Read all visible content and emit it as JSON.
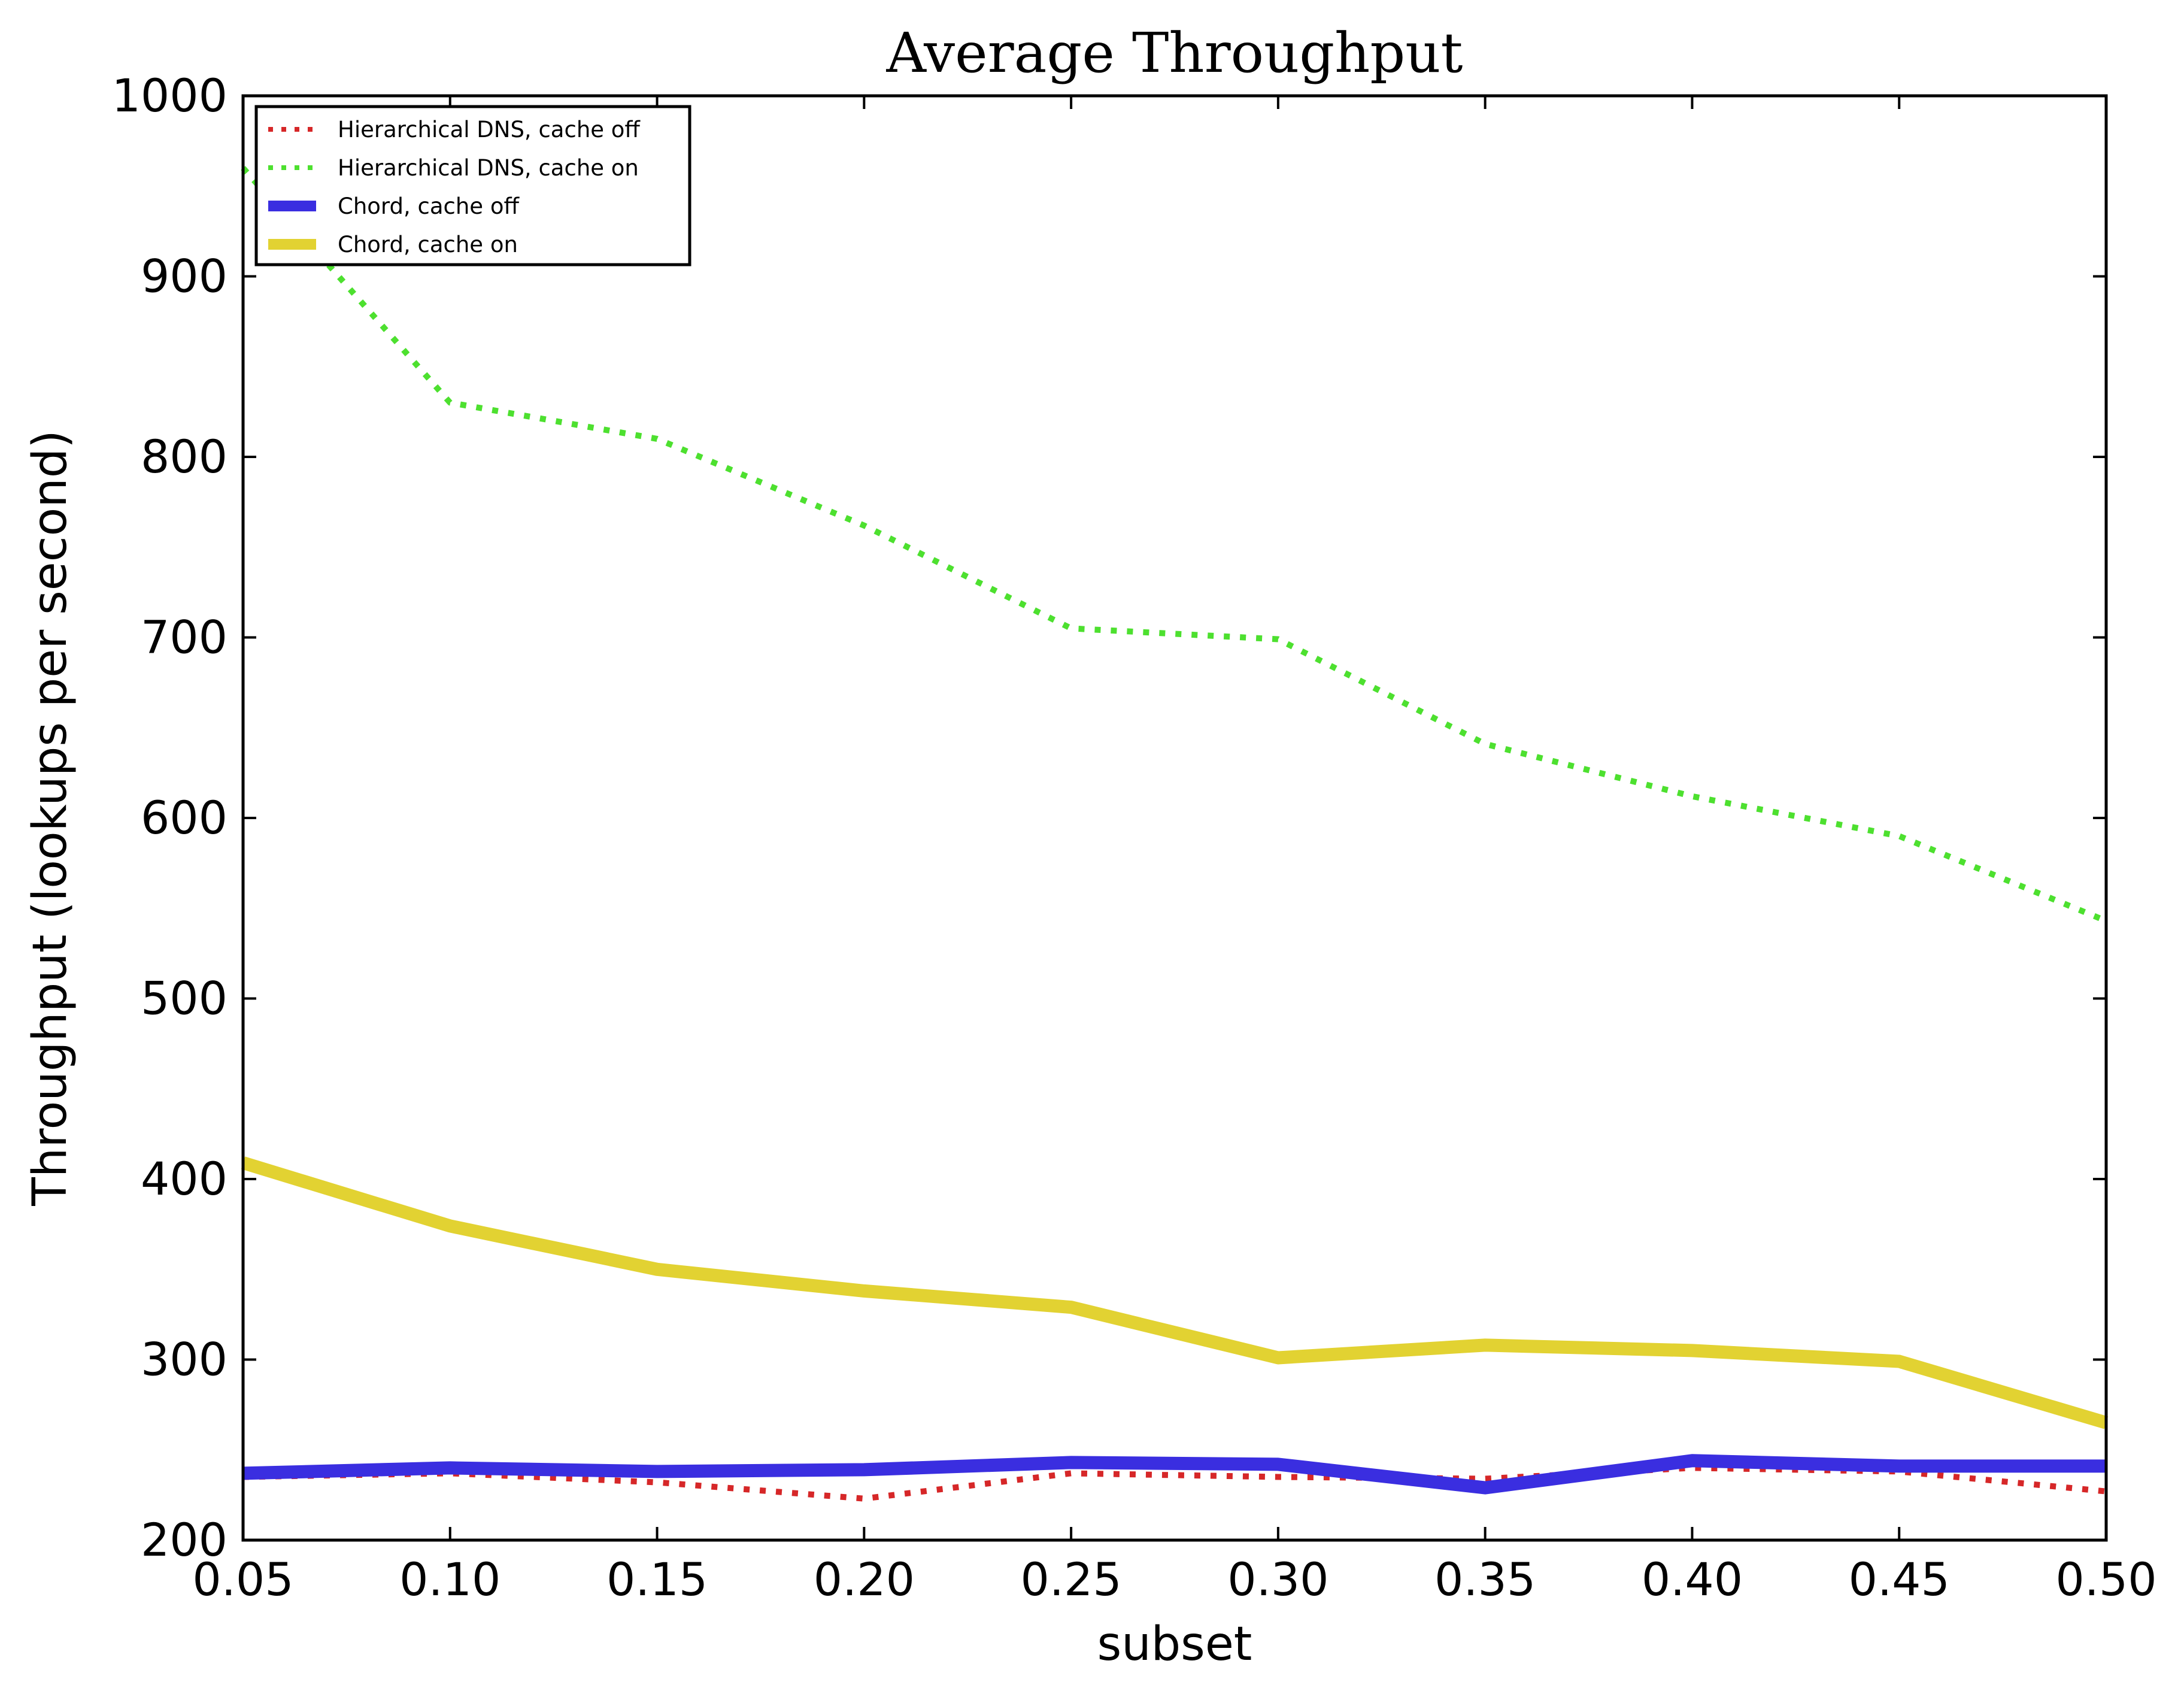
{
  "chart_data": {
    "type": "line",
    "title": "Average Throughput",
    "xlabel": "subset",
    "ylabel": "Throughput (lookups per second)",
    "xlim": [
      0.05,
      0.5
    ],
    "ylim": [
      200,
      1000
    ],
    "x": [
      0.05,
      0.1,
      0.15,
      0.2,
      0.25,
      0.3,
      0.35,
      0.4,
      0.45,
      0.5
    ],
    "x_tick_labels": [
      "0.05",
      "0.10",
      "0.15",
      "0.20",
      "0.25",
      "0.30",
      "0.35",
      "0.40",
      "0.45",
      "0.50"
    ],
    "y_ticks": [
      200,
      300,
      400,
      500,
      600,
      700,
      800,
      900,
      1000
    ],
    "y_tick_labels": [
      "200",
      "300",
      "400",
      "500",
      "600",
      "700",
      "800",
      "900",
      "1000"
    ],
    "grid": false,
    "legend_position": "top-left",
    "series": [
      {
        "name": "Hierarchical DNS, cache off",
        "color": "#d62728",
        "style": "dotted",
        "values": [
          235,
          237,
          232,
          223,
          237,
          235,
          234,
          240,
          238,
          227
        ]
      },
      {
        "name": "Hierarchical DNS, cache on",
        "color": "#4de02f",
        "style": "dotted",
        "values": [
          960,
          830,
          810,
          762,
          705,
          699,
          641,
          612,
          590,
          543
        ]
      },
      {
        "name": "Chord, cache off",
        "color": "#3a2ee0",
        "style": "solid",
        "values": [
          237,
          240,
          238,
          239,
          243,
          242,
          229,
          244,
          241,
          241
        ]
      },
      {
        "name": "Chord, cache on",
        "color": "#e2d232",
        "style": "solid",
        "values": [
          409,
          374,
          350,
          338,
          329,
          301,
          308,
          305,
          299,
          265
        ]
      }
    ]
  }
}
